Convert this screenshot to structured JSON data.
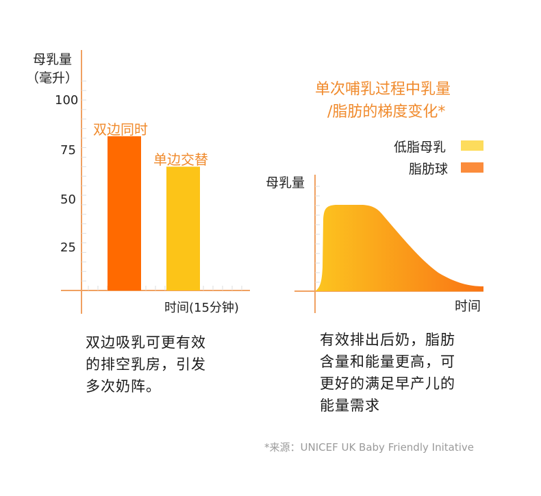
{
  "chart_data": [
    {
      "type": "bar",
      "ylabel": "母乳量",
      "ylabel_unit": "（毫升）",
      "xlabel": "时间(15分钟)",
      "categories": [
        "双边同时",
        "单边交替"
      ],
      "values": [
        81,
        65
      ],
      "colors": [
        "#ff6a00",
        "#fcc418"
      ],
      "yticks": [
        "100",
        "75",
        "50",
        "25"
      ],
      "ylim": [
        0,
        110
      ],
      "grid": false
    },
    {
      "type": "area",
      "title": [
        "单次哺乳过程中乳量",
        "/脂肪的梯度变化*"
      ],
      "ylabel": "母乳量",
      "xlabel": "时间",
      "legend": [
        {
          "label": "低脂母乳",
          "color": "#fddc5c"
        },
        {
          "label": "脂肪球",
          "color": "#fb8c3c"
        }
      ],
      "legend_position": "top-right",
      "gradient": [
        "#fcc520",
        "#f97414"
      ],
      "grid": false
    }
  ],
  "captions": {
    "left": [
      "双边吸乳可更有效",
      "的排空乳房，引发",
      "多次奶阵。"
    ],
    "right": [
      "有效排出后奶，脂肪",
      "含量和能量更高，可",
      "更好的满足早产儿的",
      "能量需求"
    ]
  },
  "source": "*来源：UNICEF UK Baby Friendly Initative",
  "axis_color": "#f0a060"
}
